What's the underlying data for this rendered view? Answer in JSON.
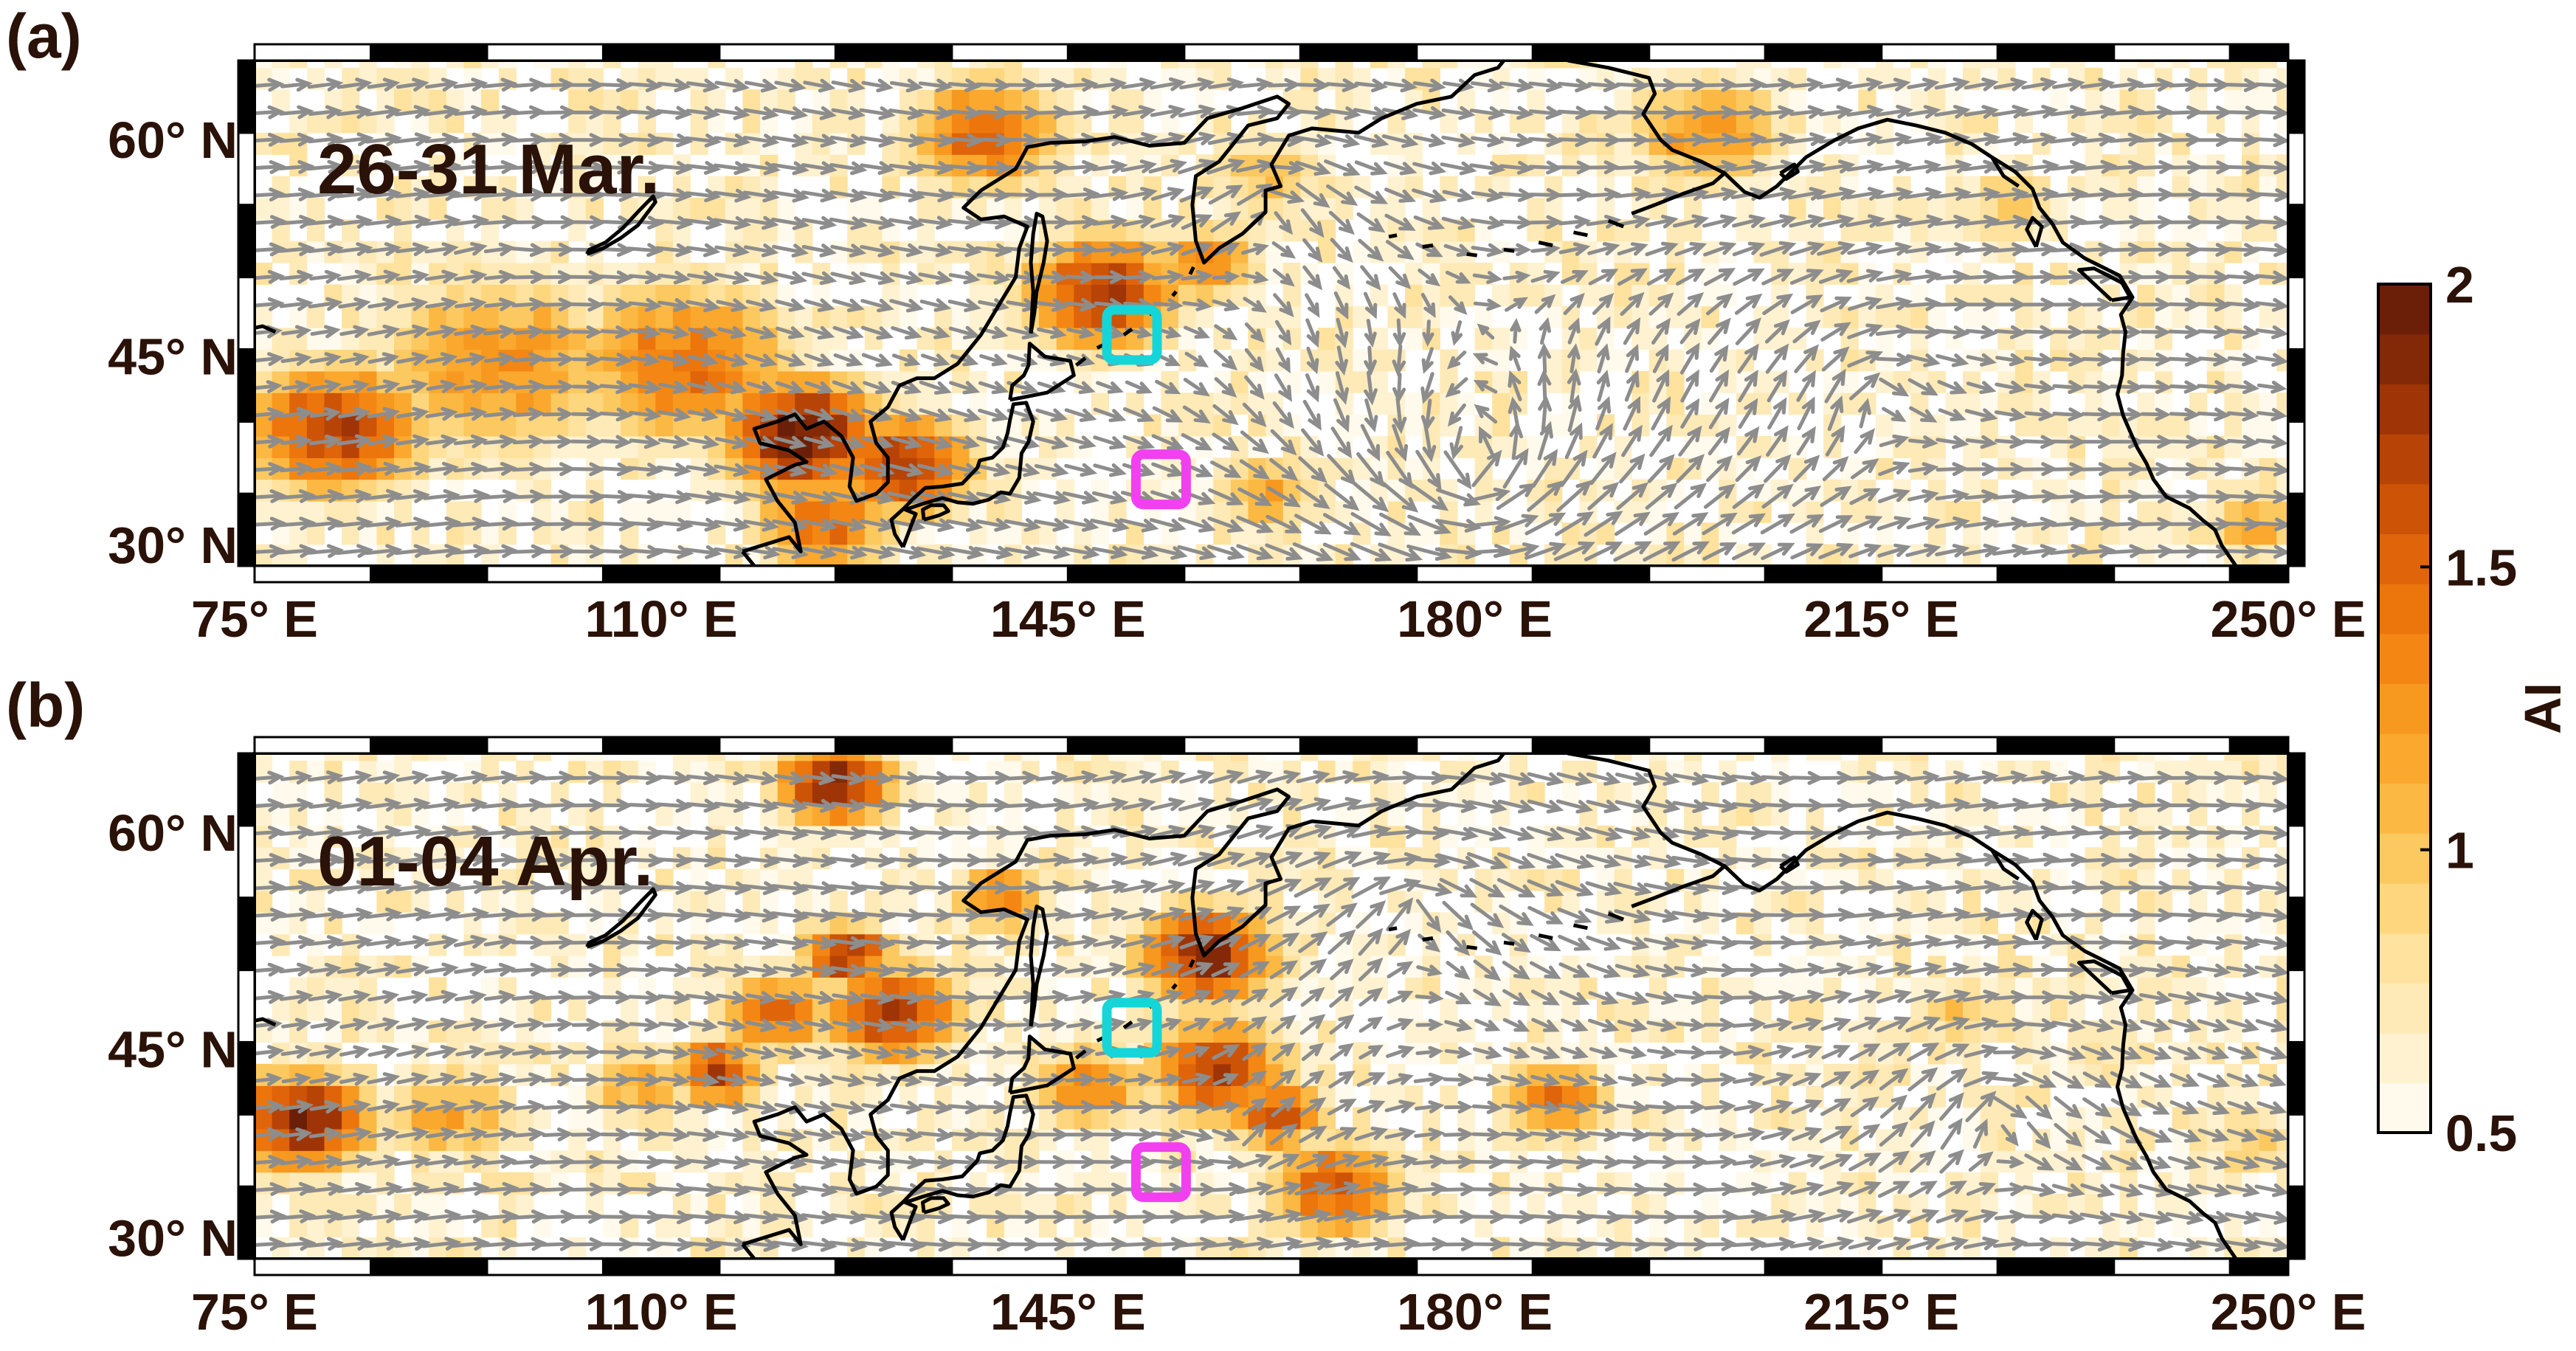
{
  "figure": {
    "panels": [
      {
        "label": "(a)",
        "period": "26-31 Mar.",
        "seed": 11,
        "hotspots": [
          {
            "lon": 82,
            "lat": 39.5,
            "r": 8,
            "v": 1.7
          },
          {
            "lon": 96,
            "lat": 44,
            "r": 11,
            "v": 1.3
          },
          {
            "lon": 112,
            "lat": 44,
            "r": 10,
            "v": 1.45
          },
          {
            "lon": 122,
            "lat": 39,
            "r": 7,
            "v": 1.95
          },
          {
            "lon": 131,
            "lat": 37,
            "r": 6,
            "v": 1.8
          },
          {
            "lon": 124,
            "lat": 33,
            "r": 6,
            "v": 1.5
          },
          {
            "lon": 138,
            "lat": 60,
            "r": 7,
            "v": 1.5
          },
          {
            "lon": 148,
            "lat": 49,
            "r": 7,
            "v": 1.7
          },
          {
            "lon": 157,
            "lat": 51,
            "r": 5,
            "v": 1.3
          },
          {
            "lon": 162,
            "lat": 57,
            "r": 5,
            "v": 1.1
          },
          {
            "lon": 200,
            "lat": 60,
            "r": 7,
            "v": 1.3
          },
          {
            "lon": 226,
            "lat": 55,
            "r": 5,
            "v": 0.95
          },
          {
            "lon": 162,
            "lat": 35,
            "r": 5,
            "v": 1.15
          },
          {
            "lon": 247,
            "lat": 33,
            "r": 5,
            "v": 1.1
          }
        ],
        "flow": [
          {
            "lon": 96,
            "lat": 52,
            "w": 0.35,
            "s": 1.5,
            "kind": "vortex-cw"
          },
          {
            "lon": 180,
            "lat": 37,
            "w": 1.1,
            "s": 18,
            "kind": "vortex-ccw"
          },
          {
            "lon": 214,
            "lat": 42,
            "w": 0.5,
            "s": 14,
            "kind": "vortex-cw"
          },
          {
            "lon": 163,
            "lat": 55,
            "w": 0.6,
            "s": 8,
            "kind": "vortex-cw"
          }
        ],
        "boxes": [
          {
            "lon": 150.5,
            "lat": 46,
            "color": "cyan"
          },
          {
            "lon": 153,
            "lat": 36,
            "color": "magenta"
          }
        ]
      },
      {
        "label": "(b)",
        "period": "01-04 Apr.",
        "seed": 29,
        "hotspots": [
          {
            "lon": 79,
            "lat": 39.5,
            "r": 6,
            "v": 1.9
          },
          {
            "lon": 92,
            "lat": 40,
            "r": 6,
            "v": 1.2
          },
          {
            "lon": 108,
            "lat": 42,
            "r": 5,
            "v": 1.15
          },
          {
            "lon": 120,
            "lat": 47,
            "r": 5,
            "v": 1.5
          },
          {
            "lon": 115,
            "lat": 43,
            "r": 4,
            "v": 1.7
          },
          {
            "lon": 130,
            "lat": 47,
            "r": 6,
            "v": 1.7
          },
          {
            "lon": 126,
            "lat": 51,
            "r": 4,
            "v": 1.8
          },
          {
            "lon": 125,
            "lat": 63,
            "r": 5,
            "v": 1.9
          },
          {
            "lon": 139,
            "lat": 55,
            "r": 4,
            "v": 1.4
          },
          {
            "lon": 157,
            "lat": 51,
            "r": 6,
            "v": 1.85
          },
          {
            "lon": 158,
            "lat": 43,
            "r": 6,
            "v": 1.75
          },
          {
            "lon": 163,
            "lat": 40,
            "r": 4,
            "v": 1.7
          },
          {
            "lon": 168,
            "lat": 35,
            "r": 6,
            "v": 1.55
          },
          {
            "lon": 147,
            "lat": 42,
            "r": 5,
            "v": 1.4
          },
          {
            "lon": 187,
            "lat": 41,
            "r": 5,
            "v": 1.4
          },
          {
            "lon": 222,
            "lat": 47,
            "r": 5,
            "v": 0.95
          },
          {
            "lon": 247,
            "lat": 38,
            "r": 5,
            "v": 1.0
          },
          {
            "lon": 234,
            "lat": 44,
            "r": 5,
            "v": 0.8
          }
        ],
        "flow": [
          {
            "lon": 96,
            "lat": 52,
            "w": 0.35,
            "s": 1.2,
            "kind": "vortex-cw"
          },
          {
            "lon": 175,
            "lat": 54,
            "w": 0.7,
            "s": 10,
            "kind": "vortex-cw"
          },
          {
            "lon": 225,
            "lat": 40,
            "w": 0.6,
            "s": 13,
            "kind": "vortex-cw"
          },
          {
            "lon": 160,
            "lat": 38,
            "w": 0.3,
            "s": 8,
            "kind": "vortex-ccw"
          }
        ],
        "boxes": [
          {
            "lon": 150.5,
            "lat": 46,
            "color": "cyan"
          },
          {
            "lon": 153,
            "lat": 36,
            "color": "magenta"
          }
        ]
      }
    ],
    "axes": {
      "lon_range": [
        75,
        250
      ],
      "lat_range": [
        30,
        65
      ],
      "x_ticks": [
        75,
        110,
        145,
        180,
        215,
        250
      ],
      "x_tick_labels": [
        "75° E",
        "110° E",
        "145° E",
        "180° E",
        "215° E",
        "250° E"
      ],
      "y_ticks": [
        30,
        45,
        60
      ],
      "y_tick_labels": [
        "30° N",
        "45° N",
        "60° N"
      ]
    },
    "colorbar": {
      "title": "AI",
      "range": [
        0.5,
        2
      ],
      "ticks": [
        0.5,
        1,
        1.5,
        2
      ],
      "tick_labels": [
        "0.5",
        "1",
        "1.5",
        "2"
      ],
      "colors": [
        "#fffaeb",
        "#fff2d1",
        "#feeab7",
        "#fee29d",
        "#fdd67e",
        "#fcc860",
        "#fbb843",
        "#faa82e",
        "#f7981f",
        "#f48713",
        "#ec750c",
        "#e06409",
        "#cd5307",
        "#b84306",
        "#9f3506",
        "#842907",
        "#6b1f08"
      ]
    },
    "colors": {
      "cyan_box": "#16d5d8",
      "magenta_box": "#f23ff0",
      "arrow": "#8d8d8d",
      "coast": "#000000",
      "text": "#2a1208"
    }
  }
}
